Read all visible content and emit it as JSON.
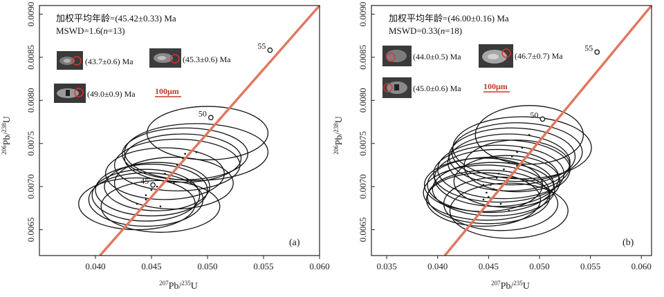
{
  "chart_data": [
    {
      "type": "scatter",
      "panel_label": "(a)",
      "title_line1": "加权平均年龄=(45.42±0.33) Ma",
      "title_line2_prefix": "MSWD=1.6(",
      "title_line2_n": "n",
      "title_line2_suffix": "=13)",
      "xlabel_sup": "207",
      "xlabel_main": "Pb/",
      "xlabel_sup2": "235",
      "xlabel_tail": "U",
      "ylabel_sup": "206",
      "ylabel_main": "Pb/",
      "ylabel_sup2": "238",
      "ylabel_tail": "U",
      "xlim": [
        0.035,
        0.06
      ],
      "ylim": [
        0.0062,
        0.0091
      ],
      "xticks": [
        0.04,
        0.045,
        0.05,
        0.055,
        0.06
      ],
      "xtick_labels": [
        "0.040",
        "0.045",
        "0.050",
        "0.055",
        "0.060"
      ],
      "yticks": [
        0.0065,
        0.007,
        0.0075,
        0.008,
        0.0085,
        0.009
      ],
      "ytick_labels": [
        "0.0065",
        "0.0070",
        "0.0075",
        "0.0080",
        "0.0085",
        "0.0090"
      ],
      "concordia_ages": [
        {
          "label": "45",
          "x": 0.04513,
          "y": 0.007019
        },
        {
          "label": "50",
          "x": 0.0503,
          "y": 0.0078
        },
        {
          "label": "55",
          "x": 0.05558,
          "y": 0.008582
        }
      ],
      "concordia_line": {
        "x1": 0.0404,
        "y1": 0.0062,
        "x2": 0.06,
        "y2": 0.0091
      },
      "ellipses": [
        {
          "cx": 0.05,
          "cy": 0.00762,
          "rx": 0.0054,
          "ry": 0.00031
        },
        {
          "cx": 0.049,
          "cy": 0.0074,
          "rx": 0.0064,
          "ry": 0.00033
        },
        {
          "cx": 0.048,
          "cy": 0.00738,
          "rx": 0.0056,
          "ry": 0.0003
        },
        {
          "cx": 0.0473,
          "cy": 0.00725,
          "rx": 0.0056,
          "ry": 0.0003
        },
        {
          "cx": 0.0478,
          "cy": 0.00733,
          "rx": 0.0052,
          "ry": 0.00028
        },
        {
          "cx": 0.0462,
          "cy": 0.00715,
          "rx": 0.0053,
          "ry": 0.0003
        },
        {
          "cx": 0.047,
          "cy": 0.00704,
          "rx": 0.0053,
          "ry": 0.0003
        },
        {
          "cx": 0.0455,
          "cy": 0.007,
          "rx": 0.0047,
          "ry": 0.00028
        },
        {
          "cx": 0.045,
          "cy": 0.00696,
          "rx": 0.005,
          "ry": 0.0003
        },
        {
          "cx": 0.0445,
          "cy": 0.0069,
          "rx": 0.0048,
          "ry": 0.0003
        },
        {
          "cx": 0.0445,
          "cy": 0.00685,
          "rx": 0.0051,
          "ry": 0.00031
        },
        {
          "cx": 0.0458,
          "cy": 0.00677,
          "rx": 0.0053,
          "ry": 0.0003
        },
        {
          "cx": 0.0437,
          "cy": 0.0068,
          "rx": 0.0052,
          "ry": 0.0003
        }
      ],
      "grains": [
        {
          "label": "(43.7±0.6) Ma"
        },
        {
          "label": "(45.3±0.6) Ma"
        },
        {
          "label": "(49.0±0.9) Ma"
        }
      ],
      "scale_bar": "100μm"
    },
    {
      "type": "scatter",
      "panel_label": "(b)",
      "title_line1": "加权平均年龄=(46.00±0.16) Ma",
      "title_line2_prefix": "MSWD=0.33(",
      "title_line2_n": "n",
      "title_line2_suffix": "=18)",
      "xlabel_sup": "207",
      "xlabel_main": "Pb/",
      "xlabel_sup2": "235",
      "xlabel_tail": "U",
      "ylabel_sup": "206",
      "ylabel_main": "Pb/",
      "ylabel_sup2": "238",
      "ylabel_tail": "U",
      "xlim": [
        0.0335,
        0.061
      ],
      "ylim": [
        0.0062,
        0.0091
      ],
      "xticks": [
        0.035,
        0.04,
        0.045,
        0.05,
        0.055,
        0.06
      ],
      "xtick_labels": [
        "0.035",
        "0.040",
        "0.045",
        "0.050",
        "0.055",
        "0.060"
      ],
      "yticks": [
        0.0065,
        0.007,
        0.0075,
        0.008,
        0.0085,
        0.009
      ],
      "ytick_labels": [
        "0.0065",
        "0.0070",
        "0.0075",
        "0.0080",
        "0.0085",
        "0.0090"
      ],
      "concordia_ages": [
        {
          "label": "50",
          "x": 0.0503,
          "y": 0.007783
        },
        {
          "label": "55",
          "x": 0.05565,
          "y": 0.00856
        }
      ],
      "concordia_line": {
        "x1": 0.0407,
        "y1": 0.0062,
        "x2": 0.061,
        "y2": 0.0091
      },
      "ellipses": [
        {
          "cx": 0.049,
          "cy": 0.0076,
          "rx": 0.0053,
          "ry": 0.00034
        },
        {
          "cx": 0.0483,
          "cy": 0.00745,
          "rx": 0.0068,
          "ry": 0.00036
        },
        {
          "cx": 0.0478,
          "cy": 0.0074,
          "rx": 0.0064,
          "ry": 0.00034
        },
        {
          "cx": 0.0473,
          "cy": 0.00735,
          "rx": 0.0062,
          "ry": 0.00033
        },
        {
          "cx": 0.047,
          "cy": 0.00728,
          "rx": 0.006,
          "ry": 0.00033
        },
        {
          "cx": 0.0478,
          "cy": 0.00724,
          "rx": 0.0052,
          "ry": 0.0003
        },
        {
          "cx": 0.0465,
          "cy": 0.0072,
          "rx": 0.0065,
          "ry": 0.00034
        },
        {
          "cx": 0.046,
          "cy": 0.00715,
          "rx": 0.0064,
          "ry": 0.00033
        },
        {
          "cx": 0.0458,
          "cy": 0.0071,
          "rx": 0.0061,
          "ry": 0.00033
        },
        {
          "cx": 0.0468,
          "cy": 0.00706,
          "rx": 0.0052,
          "ry": 0.0003
        },
        {
          "cx": 0.0452,
          "cy": 0.00702,
          "rx": 0.0062,
          "ry": 0.00032
        },
        {
          "cx": 0.0455,
          "cy": 0.00697,
          "rx": 0.006,
          "ry": 0.00031
        },
        {
          "cx": 0.0445,
          "cy": 0.00702,
          "rx": 0.0058,
          "ry": 0.00031
        },
        {
          "cx": 0.0448,
          "cy": 0.00693,
          "rx": 0.0062,
          "ry": 0.00032
        },
        {
          "cx": 0.045,
          "cy": 0.00688,
          "rx": 0.006,
          "ry": 0.00031
        },
        {
          "cx": 0.0445,
          "cy": 0.00685,
          "rx": 0.0056,
          "ry": 0.00031
        },
        {
          "cx": 0.0462,
          "cy": 0.0068,
          "rx": 0.0056,
          "ry": 0.00031
        },
        {
          "cx": 0.047,
          "cy": 0.00672,
          "rx": 0.0058,
          "ry": 0.00032
        }
      ],
      "grains": [
        {
          "label": "(44.0±0.5) Ma"
        },
        {
          "label": "(46.7±0.7) Ma"
        },
        {
          "label": "(45.0±0.6) Ma"
        }
      ],
      "scale_bar": "100μm"
    }
  ]
}
